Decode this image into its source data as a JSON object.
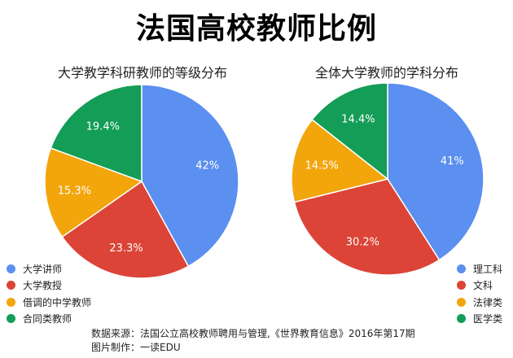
{
  "title": "法国高校教师比例",
  "source": {
    "line1": "数据来源：法国公立高校教师聘用与管理,《世界教育信息》2016年第17期",
    "line2": "图片制作：一读EDU"
  },
  "chart_data": [
    {
      "type": "pie",
      "title": "大学教学科研教师的等级分布",
      "slices": [
        {
          "label": "大学讲师",
          "value": 42,
          "display": "42%",
          "color": "#5b8ff0"
        },
        {
          "label": "大学教授",
          "value": 23.3,
          "display": "23.3%",
          "color": "#db4437"
        },
        {
          "label": "借调的中学教师",
          "value": 15.3,
          "display": "15.3%",
          "color": "#f2a60c"
        },
        {
          "label": "合同类教师",
          "value": 19.4,
          "display": "19.4%",
          "color": "#139d56"
        }
      ],
      "legend_position": "bottom-left"
    },
    {
      "type": "pie",
      "title": "全体大学教师的学科分布",
      "slices": [
        {
          "label": "理工科",
          "value": 41,
          "display": "41%",
          "color": "#5b8ff0"
        },
        {
          "label": "文科",
          "value": 30.2,
          "display": "30.2%",
          "color": "#db4437"
        },
        {
          "label": "法律类",
          "value": 14.5,
          "display": "14.5%",
          "color": "#f2a60c"
        },
        {
          "label": "医学类",
          "value": 14.4,
          "display": "14.4%",
          "color": "#139d56"
        }
      ],
      "legend_position": "bottom-right"
    }
  ]
}
